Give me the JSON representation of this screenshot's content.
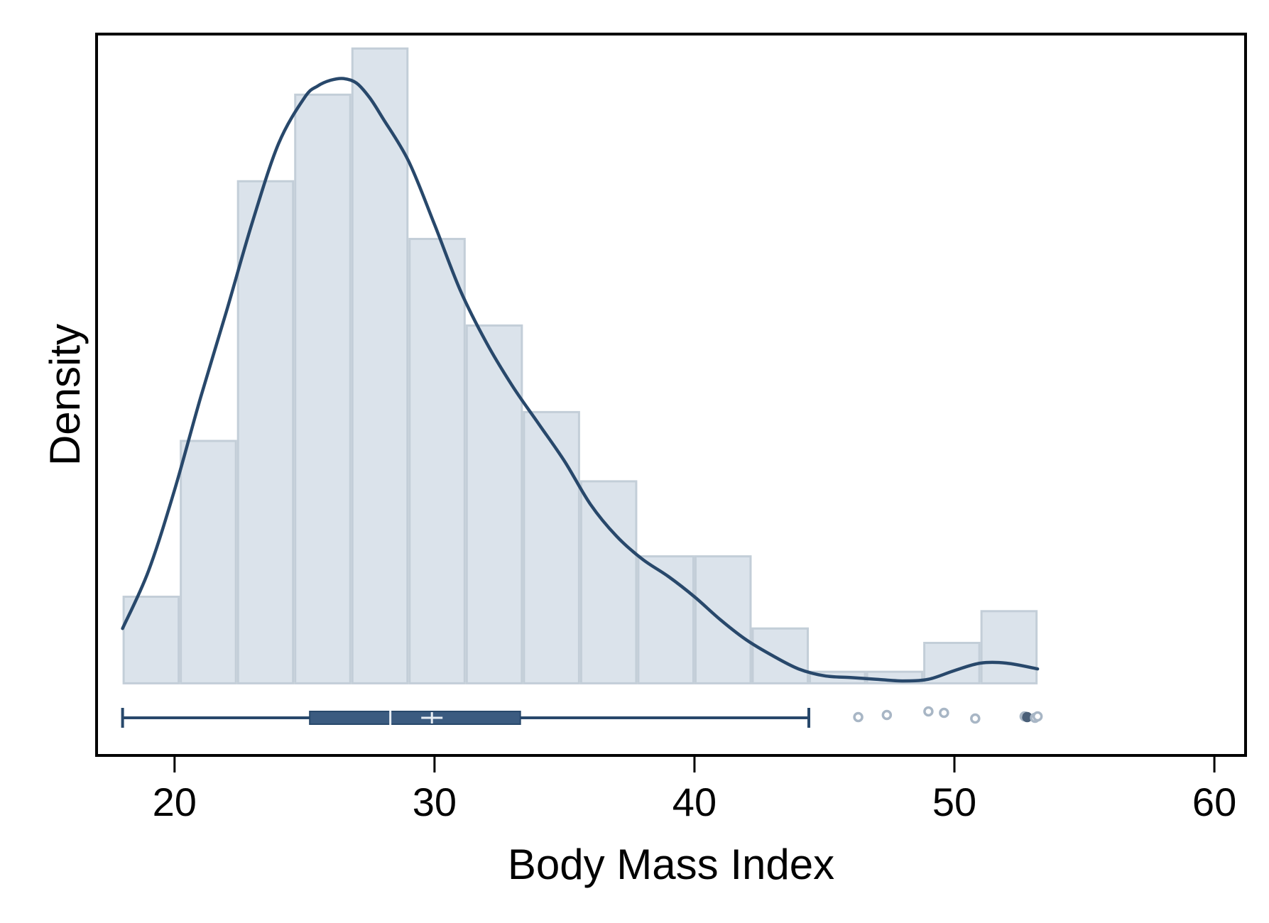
{
  "colors": {
    "bar_fill": "#dbe3eb",
    "bar_stroke": "#c3ced8",
    "density_line": "#28486b",
    "box_fill": "#3b5b80",
    "box_stroke": "#28486b",
    "whisker": "#28486b",
    "outlier": "#a8b6c5",
    "outlier_dark": "#4a5f78",
    "median_mark": "#e8eef4",
    "frame": "#000000"
  },
  "chart_data": {
    "type": "histogram",
    "title": "",
    "xlabel": "Body Mass Index",
    "ylabel": "Density",
    "xlim": [
      17,
      61.2
    ],
    "ylim": [
      -0.0125,
      0.1125
    ],
    "grid": false,
    "legend": "none",
    "x_ticks": [
      20,
      30,
      40,
      50,
      60
    ],
    "x_tick_labels": [
      "20",
      "30",
      "40",
      "50",
      "60"
    ],
    "histogram": {
      "bin_edges": [
        18.0,
        20.2,
        22.4,
        24.6,
        26.8,
        29.0,
        31.2,
        33.4,
        35.6,
        37.8,
        40.0,
        42.2,
        44.4,
        46.6,
        48.8,
        51.0,
        53.2
      ],
      "density": [
        0.015,
        0.042,
        0.087,
        0.102,
        0.11,
        0.077,
        0.062,
        0.047,
        0.035,
        0.022,
        0.022,
        0.0095,
        0.002,
        0.002,
        0.007,
        0.0125
      ]
    },
    "density_curve": {
      "x": [
        18.0,
        19.0,
        20.0,
        21.0,
        22.0,
        23.0,
        24.0,
        25.0,
        25.5,
        26.0,
        26.5,
        27.0,
        27.5,
        28.0,
        29.0,
        30.0,
        31.0,
        32.0,
        33.0,
        34.0,
        35.0,
        36.0,
        37.0,
        38.0,
        39.0,
        40.0,
        41.0,
        42.0,
        43.0,
        44.0,
        45.0,
        46.0,
        47.0,
        48.0,
        49.0,
        50.0,
        51.0,
        52.0,
        53.2
      ],
      "y": [
        0.0095,
        0.0195,
        0.0335,
        0.0495,
        0.0645,
        0.08,
        0.0935,
        0.1015,
        0.1035,
        0.1045,
        0.1048,
        0.104,
        0.1015,
        0.098,
        0.0905,
        0.0795,
        0.068,
        0.059,
        0.0515,
        0.045,
        0.0385,
        0.031,
        0.0255,
        0.0215,
        0.0185,
        0.015,
        0.011,
        0.0075,
        0.0048,
        0.0025,
        0.0013,
        0.001,
        0.0007,
        0.0004,
        0.0007,
        0.0022,
        0.0035,
        0.0035,
        0.0025
      ]
    },
    "boxplot": {
      "whisker_low": 18.0,
      "q1": 25.2,
      "median": 28.3,
      "mean": 29.9,
      "q3": 33.3,
      "whisker_high": 44.4,
      "outliers": [
        46.3,
        47.4,
        49.0,
        49.6,
        50.8,
        52.7,
        52.8,
        53.1,
        53.2
      ]
    }
  }
}
